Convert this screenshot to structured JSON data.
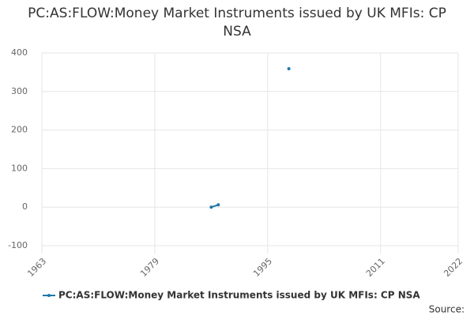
{
  "chart_data": {
    "type": "line",
    "title": "PC:AS:FLOW:Money Market Instruments issued by UK MFIs: CP NSA",
    "x": [
      1987,
      1988,
      1989,
      1998
    ],
    "series": [
      {
        "name": "PC:AS:FLOW:Money Market Instruments issued by UK MFIs: CP NSA",
        "color": "#1f78a8",
        "values": [
          0,
          6,
          null,
          359
        ]
      }
    ],
    "xlim": [
      1963,
      2022
    ],
    "xticks": [
      1963,
      1979,
      1995,
      2011,
      2022
    ],
    "ylim": [
      -100,
      400
    ],
    "yticks": [
      -100,
      0,
      100,
      200,
      300,
      400
    ],
    "grid": true,
    "legend": "bottom",
    "source": "Source:"
  }
}
